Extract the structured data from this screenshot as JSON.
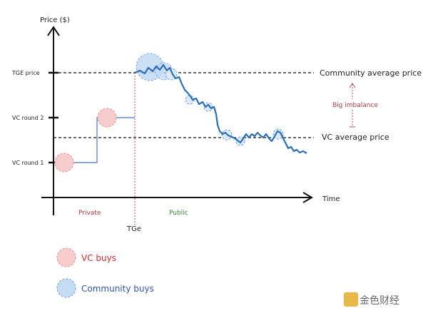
{
  "chart": {
    "y_title": "Price ($)",
    "x_title": "Time",
    "y_ticks": [
      "TGE price",
      "VC round 2",
      "VC round 1"
    ],
    "phases": {
      "private": "Private",
      "public": "Public",
      "tge": "TGe"
    },
    "refs": {
      "community": "Community average price",
      "vc": "VC average price"
    },
    "imbalance": "Big imbalance"
  },
  "legend": [
    {
      "label": "VC buys",
      "color": "#d9282f"
    },
    {
      "label": "Community buys",
      "color": "#2f55b3"
    }
  ],
  "watermark": "金色财经",
  "colors": {
    "vc_fill": "#f7cccd",
    "community_fill": "#c6dcf5",
    "line": "#2a6fb8",
    "tge_line": "#c44a4a",
    "private": "#b03a3a",
    "public": "#3a8a3a"
  }
}
